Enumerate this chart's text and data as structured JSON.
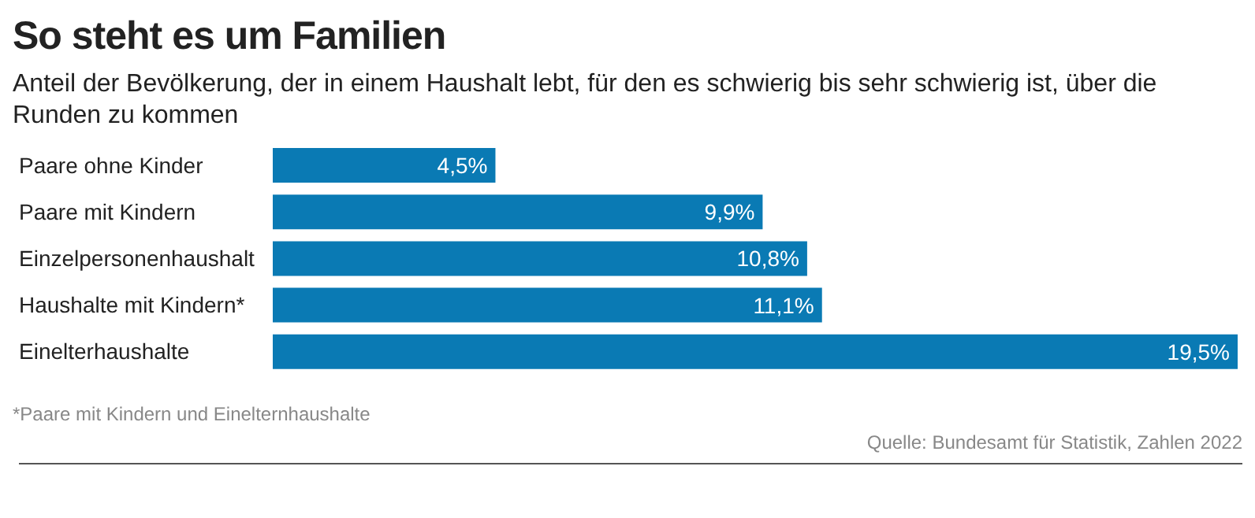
{
  "chart_data": {
    "type": "bar",
    "orientation": "horizontal",
    "title": "So steht es um Familien",
    "subtitle": "Anteil der Bevölkerung, der in einem Haushalt lebt, für den es schwierig bis sehr schwierig ist, über die Runden zu kommen",
    "categories": [
      "Paare ohne Kinder",
      "Paare mit Kindern",
      "Einzelpersonenhaushalt",
      "Haushalte mit Kindern*",
      "Einelterhaushalte"
    ],
    "values": [
      4.5,
      9.9,
      10.8,
      11.1,
      19.5
    ],
    "value_labels": [
      "4,5%",
      "9,9%",
      "10,8%",
      "11,1%",
      "19,5%"
    ],
    "color": "#0a7ab4",
    "annotations": [
      "*Paare mit Kindern und Einelternhaushalte",
      "Quelle: Bundesamt für Statistik, Zahlen 2022"
    ]
  }
}
